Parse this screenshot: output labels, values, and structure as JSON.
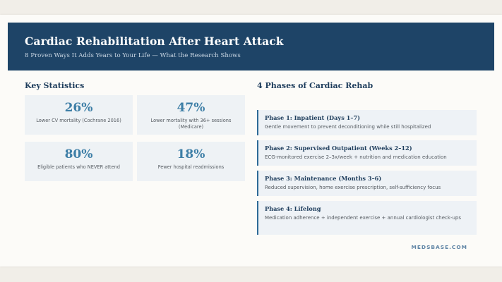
{
  "header": {
    "title": "Cardiac Rehabilitation After Heart Attack",
    "subtitle": "8 Proven Ways It Adds Years to Your Life — What the Research Shows"
  },
  "statistics": {
    "heading": "Key Statistics",
    "items": [
      {
        "value": "26%",
        "label": "Lower CV mortality (Cochrane 2016)"
      },
      {
        "value": "47%",
        "label": "Lower mortality with 36+ sessions (Medicare)"
      },
      {
        "value": "80%",
        "label": "Eligible patients who NEVER attend"
      },
      {
        "value": "18%",
        "label": "Fewer hospital readmissions"
      }
    ]
  },
  "phases": {
    "heading": "4 Phases of Cardiac Rehab",
    "items": [
      {
        "title": "Phase 1: Inpatient (Days 1–7)",
        "description": "Gentle movement to prevent deconditioning while still hospitalized"
      },
      {
        "title": "Phase 2: Supervised Outpatient (Weeks 2–12)",
        "description": "ECG-monitored exercise 2–3x/week + nutrition and medication education"
      },
      {
        "title": "Phase 3: Maintenance (Months 3–6)",
        "description": "Reduced supervision, home exercise prescription, self-sufficiency focus"
      },
      {
        "title": "Phase 4: Lifelong",
        "description": "Medication adherence + independent exercise + annual cardiologist check-ups"
      }
    ]
  },
  "footer": {
    "brand": "MEDSBASE.COM"
  },
  "colors": {
    "header_bg": "#1e4467",
    "accent": "#3d7ea6",
    "card_bg": "#eef2f5"
  }
}
